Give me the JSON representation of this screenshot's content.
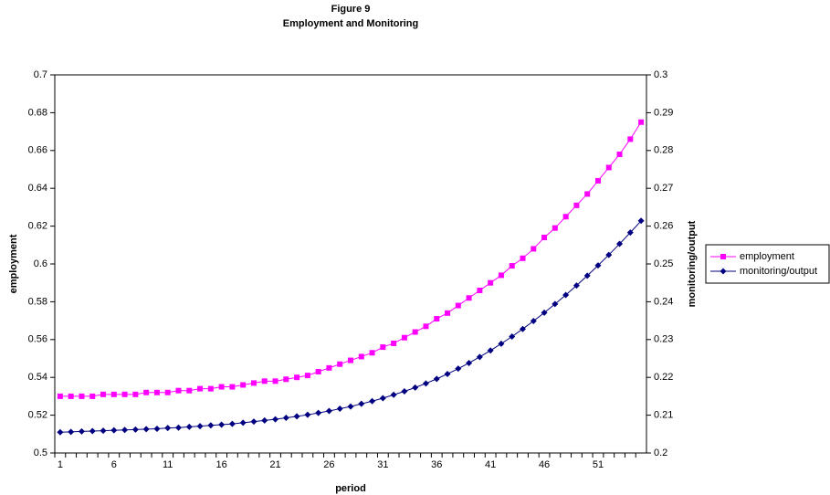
{
  "chart_data": {
    "type": "line",
    "title": "Figure 9",
    "subtitle": "Employment and Monitoring",
    "x_label": "period",
    "y_label": "employment",
    "y2_label": "monitoring/output",
    "categories": [
      "1",
      null,
      null,
      null,
      null,
      "6",
      null,
      null,
      null,
      null,
      "11",
      null,
      null,
      null,
      null,
      "16",
      null,
      null,
      null,
      null,
      "21",
      null,
      null,
      null,
      null,
      "26",
      null,
      null,
      null,
      null,
      "31",
      null,
      null,
      null,
      null,
      "36",
      null,
      null,
      null,
      null,
      "41",
      null,
      null,
      null,
      null,
      "46",
      null,
      null,
      null,
      null,
      "51",
      null,
      null,
      null,
      null
    ],
    "series": [
      {
        "name": "employment",
        "color": "#ff00ff",
        "marker": "square",
        "axis": "y",
        "values": [
          0.53,
          0.53,
          0.53,
          0.53,
          0.531,
          0.531,
          0.531,
          0.531,
          0.532,
          0.532,
          0.532,
          0.533,
          0.533,
          0.534,
          0.534,
          0.535,
          0.535,
          0.536,
          0.537,
          0.538,
          0.538,
          0.539,
          0.54,
          0.541,
          0.543,
          0.545,
          0.547,
          0.549,
          0.551,
          0.553,
          0.556,
          0.558,
          0.561,
          0.564,
          0.567,
          0.571,
          0.574,
          0.578,
          0.582,
          0.586,
          0.59,
          0.594,
          0.599,
          0.603,
          0.608,
          0.614,
          0.619,
          0.625,
          0.631,
          0.637,
          0.644,
          0.651,
          0.658,
          0.666,
          0.675
        ]
      },
      {
        "name": "monitoring/output",
        "color": "#000080",
        "marker": "diamond",
        "axis": "y2",
        "values": [
          0.2055,
          0.2056,
          0.2057,
          0.2058,
          0.2059,
          0.206,
          0.2061,
          0.2062,
          0.2063,
          0.2064,
          0.2066,
          0.2067,
          0.2069,
          0.2071,
          0.2073,
          0.2075,
          0.2077,
          0.208,
          0.2083,
          0.2086,
          0.2089,
          0.2093,
          0.2097,
          0.2101,
          0.2106,
          0.2111,
          0.2117,
          0.2123,
          0.213,
          0.2137,
          0.2145,
          0.2154,
          0.2163,
          0.2173,
          0.2184,
          0.2196,
          0.2209,
          0.2223,
          0.2238,
          0.2254,
          0.2271,
          0.2289,
          0.2308,
          0.2328,
          0.2349,
          0.2371,
          0.2394,
          0.2418,
          0.2443,
          0.2469,
          0.2496,
          0.2524,
          0.2553,
          0.2583,
          0.2614
        ]
      }
    ],
    "ylim": [
      0.5,
      0.7
    ],
    "yticks": [
      0.5,
      0.52,
      0.54,
      0.56,
      0.58,
      0.6,
      0.62,
      0.64,
      0.66,
      0.68,
      0.7
    ],
    "y2lim": [
      0.2,
      0.3
    ],
    "y2ticks": [
      0.2,
      0.21,
      0.22,
      0.23,
      0.24,
      0.25,
      0.26,
      0.27,
      0.28,
      0.29,
      0.3
    ],
    "legend": "right"
  }
}
